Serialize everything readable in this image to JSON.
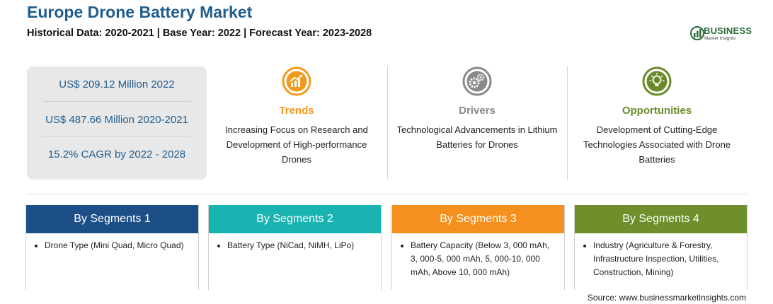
{
  "header": {
    "title": "Europe Drone Battery Market",
    "subtitle": "Historical Data: 2020-2021 | Base Year: 2022 | Forecast Year: 2023-2028"
  },
  "logo": {
    "name": "BUSINESS",
    "tagline": "Market Insights",
    "color": "#2d6a3a"
  },
  "stats": [
    "US$ 209.12 Million 2022",
    "US$ 487.66 Million 2020-2021",
    "15.2% CAGR by 2022 - 2028"
  ],
  "highlights": [
    {
      "icon": "trend-chart-icon",
      "heading": "Trends",
      "color": "#f29a1f",
      "text": "Increasing Focus on Research and Development of High-performance Drones"
    },
    {
      "icon": "gears-icon",
      "heading": "Drivers",
      "color": "#8a8a8a",
      "text": "Technological Advancements in Lithium Batteries for Drones"
    },
    {
      "icon": "lightbulb-icon",
      "heading": "Opportunities",
      "color": "#6a8a2a",
      "text": "Development of Cutting-Edge Technologies Associated with Drone Batteries"
    }
  ],
  "segments": [
    {
      "title": "By Segments 1",
      "color": "#1c4f86",
      "item": "Drone Type (Mini Quad, Micro Quad)"
    },
    {
      "title": "By Segments 2",
      "color": "#19b3b1",
      "item": "Battery Type (NiCad, NiMH, LiPo)"
    },
    {
      "title": "By Segments 3",
      "color": "#f5901e",
      "item": "Battery Capacity (Below 3, 000 mAh, 3, 000-5, 000 mAh, 5, 000-10, 000 mAh, Above 10, 000 mAh)"
    },
    {
      "title": "By Segments 4",
      "color": "#6e8f2b",
      "item": "Industry (Agriculture & Forestry, Infrastructure Inspection, Utilities, Construction, Mining)"
    }
  ],
  "source": "Source: www.businessmarketinsights.com"
}
